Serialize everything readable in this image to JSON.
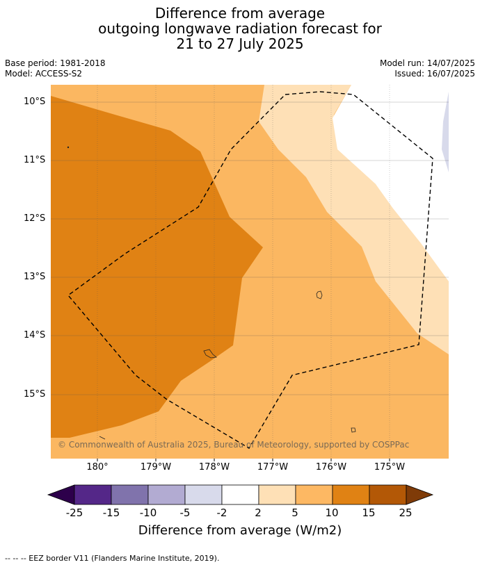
{
  "title": {
    "line1": "Difference from average",
    "line2": "outgoing longwave radiation forecast for",
    "line3": "21 to 27 July 2025"
  },
  "info": {
    "base_period": "Base period: 1981-2018",
    "model": "Model: ACCESS-S2",
    "model_run": "Model run: 14/07/2025",
    "issued": "Issued: 16/07/2025"
  },
  "map": {
    "latitude_labels": [
      "10°S",
      "11°S",
      "12°S",
      "13°S",
      "14°S",
      "15°S"
    ],
    "longitude_labels": [
      "180°",
      "179°W",
      "178°W",
      "177°W",
      "176°W",
      "175°W"
    ],
    "copyright": "© Commonwealth of Australia 2025, Bureau of Meteorology, supported by COSPPac",
    "colors": {
      "band_10_15": "#e08214",
      "band_5_10": "#fbb761",
      "band_2_5": "#fee0b6",
      "band_neg5_neg2": "#d8daeb",
      "land": "#ffffff",
      "eez_border": "#000000"
    }
  },
  "colorbar": {
    "tick_labels": [
      "-25",
      "-15",
      "-10",
      "-5",
      "-2",
      "2",
      "5",
      "10",
      "15",
      "25"
    ],
    "colors": [
      "#2d004b",
      "#542788",
      "#8073ac",
      "#b2abd2",
      "#d8daeb",
      "#ffffff",
      "#fee0b6",
      "#fdb863",
      "#e08214",
      "#b35806",
      "#7f3b08"
    ],
    "title": "Difference from average (W/m2)"
  },
  "footnote": "--  --  -- EEZ border V11 (Flanders Marine Institute, 2019)."
}
